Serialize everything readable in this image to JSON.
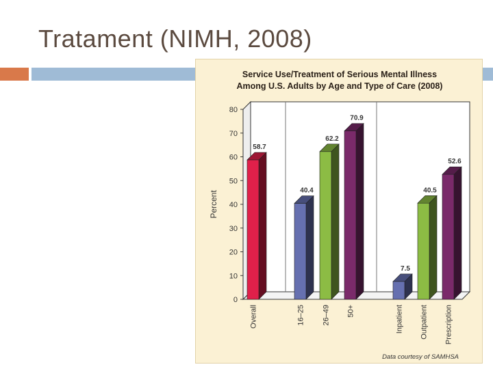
{
  "slide": {
    "title": "Tratament (NIMH, 2008)"
  },
  "colors": {
    "title_text": "#5b4a3f",
    "accent_orange": "#d9794a",
    "accent_blue": "#9fbbd6",
    "figure_background": "#fbf1d4",
    "overall": "#e0204a",
    "age_16_25": "#6670b0",
    "age_26_49": "#8cbc44",
    "age_50_plus": "#7a2a6a",
    "inpatient": "#6670b0",
    "outpatient": "#8cbc44",
    "prescription": "#7a2a6a"
  },
  "chart_data": {
    "type": "bar",
    "title_line1": "Service Use/Treatment of Serious Mental Illness",
    "title_line2": "Among U.S. Adults by Age and Type of Care (2008)",
    "ylabel": "Percent",
    "xlabel": "",
    "ylim": [
      0,
      80
    ],
    "yticks": [
      "0",
      "10",
      "20",
      "30",
      "40",
      "50",
      "60",
      "70",
      "80"
    ],
    "grid": false,
    "legend": "none",
    "categories": [
      "Overall",
      "16–25",
      "26–49",
      "50+",
      "Inpatient",
      "Outpatient",
      "Prescription"
    ],
    "values": [
      58.7,
      40.4,
      62.2,
      70.9,
      7.5,
      40.5,
      52.6
    ],
    "labels": [
      "58.7",
      "40.4",
      "62.2",
      "70.9",
      "7.5",
      "40.5",
      "52.6"
    ],
    "groups": [
      "Overall",
      "Age",
      "Type of Care"
    ],
    "source_note": "Data courtesy of SAMHSA"
  }
}
